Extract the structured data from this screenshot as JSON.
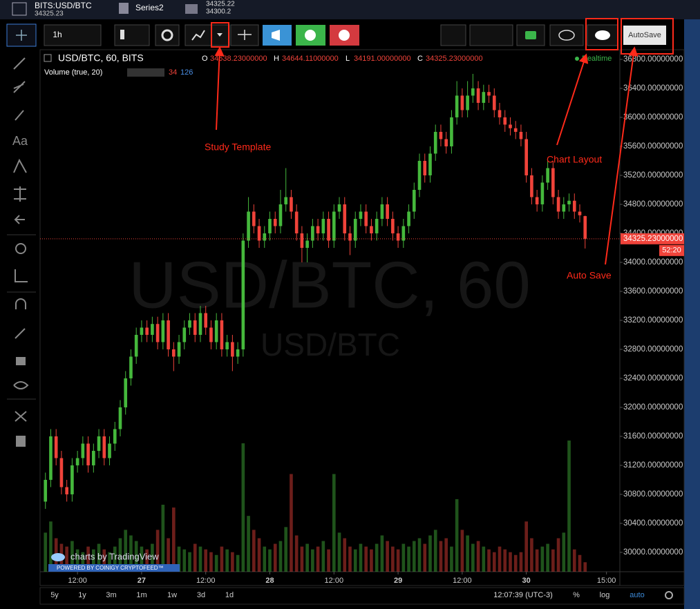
{
  "ui": {
    "symbol": "BITS:USD/BTC",
    "symbol_price": "34325.23",
    "series2": "Series2",
    "series2_price1": "34325.22",
    "series2_price2": "34300.2",
    "interval": "1h",
    "autosave": "AutoSave",
    "text_tool": "Aa",
    "timeframes": [
      "5y",
      "1y",
      "3m",
      "1m",
      "1w",
      "3d",
      "1d"
    ],
    "clock": "12:07:39 (UTC-3)",
    "percent": "%",
    "log": "log",
    "auto": "auto",
    "branding": "charts by TradingView",
    "powered": "POWERED BY COINIGY CRYPTOFEED™",
    "annotations": [
      "Study Template",
      "Chart Layout",
      "Auto Save"
    ]
  },
  "chart_data": {
    "type": "candlestick",
    "title": "USD/BTC, 60, BITS",
    "watermark": [
      "USD/BTC, 60",
      "USD/BTC"
    ],
    "ohlc_legend": [
      {
        "key": "O",
        "text": "34638.23000000"
      },
      {
        "key": "H",
        "text": "34644.11000000"
      },
      {
        "key": "L",
        "text": "34191.00000000"
      },
      {
        "key": "C",
        "text": "34325.23000000"
      }
    ],
    "volume_legend": {
      "name": "Volume (true, 20)",
      "value": 34,
      "ma": 126
    },
    "realtime": "Realtime",
    "last_price": {
      "value": 34325.23,
      "label": "34325.23000000"
    },
    "countdown": "52:20",
    "up_color": "#45b83c",
    "down_color": "#f0433a",
    "grid": false,
    "categories": [
      null,
      null,
      null,
      null,
      null,
      null,
      null,
      null,
      null,
      null,
      null,
      null,
      null,
      null,
      null,
      null,
      null,
      null,
      null,
      null,
      null,
      null,
      null,
      null,
      null,
      null,
      null,
      null,
      null,
      null,
      null,
      null,
      null,
      null,
      null,
      null,
      null,
      null,
      null,
      null,
      null,
      null,
      null,
      null,
      null,
      null,
      null,
      null,
      null,
      null,
      null,
      null,
      null,
      null,
      null,
      null,
      null,
      null,
      null,
      null,
      null,
      null,
      null,
      null,
      null,
      null,
      null,
      null,
      null,
      null,
      null,
      null,
      null,
      null,
      null,
      null,
      null,
      null,
      null,
      null,
      null,
      null,
      null,
      null,
      null,
      null,
      null,
      null,
      null,
      null,
      null,
      null,
      null,
      null,
      null,
      null,
      null,
      null,
      null,
      null,
      null,
      null
    ],
    "xlim": [
      -1,
      107.5
    ],
    "xticks": [
      {
        "value": 6,
        "label": "12:00"
      },
      {
        "value": 18,
        "label": "27"
      },
      {
        "value": 30,
        "label": "12:00"
      },
      {
        "value": 42,
        "label": "28"
      },
      {
        "value": 54,
        "label": "12:00"
      },
      {
        "value": 66,
        "label": "29"
      },
      {
        "value": 78,
        "label": "12:00"
      },
      {
        "value": 90,
        "label": "30"
      },
      {
        "value": 105,
        "label": "15:00"
      }
    ],
    "ylim": [
      29733,
      36933
    ],
    "yticks": [
      {
        "value": 30000,
        "label": "30000.00000000"
      },
      {
        "value": 30400,
        "label": "30400.00000000"
      },
      {
        "value": 30800,
        "label": "30800.00000000"
      },
      {
        "value": 31200,
        "label": "31200.00000000"
      },
      {
        "value": 31600,
        "label": "31600.00000000"
      },
      {
        "value": 32000,
        "label": "32000.00000000"
      },
      {
        "value": 32400,
        "label": "32400.00000000"
      },
      {
        "value": 32800,
        "label": "32800.00000000"
      },
      {
        "value": 33200,
        "label": "33200.00000000"
      },
      {
        "value": 33600,
        "label": "33600.00000000"
      },
      {
        "value": 34000,
        "label": "34000.00000000"
      },
      {
        "value": 34400,
        "label": "34400.00000000"
      },
      {
        "value": 34800,
        "label": "34800.00000000"
      },
      {
        "value": 35200,
        "label": "35200.00000000"
      },
      {
        "value": 35600,
        "label": "35600.00000000"
      },
      {
        "value": 36000,
        "label": "36000.00000000"
      },
      {
        "value": 36400,
        "label": "36400.00000000"
      },
      {
        "value": 36800,
        "label": "36800.00000000"
      }
    ],
    "series": [
      {
        "open": [
          30700,
          31000,
          31600,
          31300,
          30900,
          30800,
          31200,
          31300,
          31500,
          31200,
          31400,
          31600,
          31300,
          31500,
          31700,
          32000,
          32400,
          32700,
          33000,
          33100,
          33000,
          33150,
          32900,
          33200,
          32800,
          32700,
          32900,
          33100,
          33200,
          33000,
          33300,
          33100,
          32900,
          33200,
          32800,
          32900,
          32700,
          32800,
          34300,
          34700,
          34500,
          34300,
          34400,
          34600,
          34500,
          34800,
          34900,
          34700,
          34400,
          34200,
          34300,
          34500,
          34400,
          34600,
          34300,
          34700,
          34800,
          34400,
          34300,
          34600,
          34700,
          34500,
          34400,
          34600,
          34800,
          34600,
          34400,
          34300,
          34500,
          34700,
          35000,
          35400,
          35200,
          35500,
          35800,
          35700,
          35600,
          36000,
          36300,
          36100,
          36300,
          36400,
          36200,
          36350,
          36300,
          36100,
          36000,
          35900,
          35850,
          35800,
          35700,
          35200,
          34900,
          34800,
          35100,
          35300,
          34900,
          34700,
          34800,
          34850,
          34700,
          34638.23
        ],
        "high": [
          31100,
          31700,
          31700,
          31400,
          31000,
          31300,
          31400,
          31600,
          31600,
          31500,
          31700,
          31700,
          31600,
          31800,
          32100,
          32500,
          32800,
          33100,
          33200,
          33200,
          33250,
          33250,
          33300,
          33300,
          32900,
          33000,
          33200,
          33300,
          33300,
          33400,
          33400,
          33200,
          33300,
          33300,
          33000,
          33000,
          32900,
          34400,
          34900,
          34800,
          34600,
          34500,
          34700,
          34700,
          35000,
          35300,
          35000,
          34800,
          34500,
          34400,
          34600,
          34600,
          34700,
          34700,
          34800,
          34900,
          34900,
          34500,
          34700,
          34800,
          34800,
          34600,
          34700,
          34900,
          34900,
          34700,
          34500,
          34600,
          34800,
          35100,
          35500,
          35500,
          35600,
          35900,
          35900,
          35800,
          36100,
          36500,
          36400,
          36500,
          36600,
          36500,
          36450,
          36450,
          36400,
          36200,
          36100,
          36000,
          35950,
          35900,
          35800,
          35300,
          35000,
          35200,
          35400,
          35400,
          35000,
          34900,
          34950,
          34950,
          34800,
          34644.11
        ],
        "low": [
          30600,
          30900,
          31200,
          30800,
          30700,
          30700,
          31100,
          31200,
          31100,
          31100,
          31300,
          31200,
          31200,
          31400,
          31600,
          31900,
          32300,
          32600,
          32900,
          32900,
          32900,
          32800,
          32800,
          32700,
          32500,
          32600,
          32800,
          33000,
          32900,
          32900,
          33000,
          32800,
          32800,
          32700,
          32700,
          32500,
          32600,
          32700,
          34200,
          34400,
          34200,
          34200,
          34300,
          34400,
          34400,
          34700,
          34600,
          34300,
          34000,
          34000,
          34200,
          34300,
          34300,
          34200,
          34200,
          34600,
          34300,
          34100,
          34200,
          34500,
          34400,
          34300,
          34300,
          34500,
          34500,
          34300,
          34200,
          34200,
          34400,
          34600,
          34900,
          35100,
          35100,
          35400,
          35600,
          35500,
          35500,
          35900,
          36000,
          36000,
          36200,
          36100,
          36100,
          36200,
          36000,
          35900,
          35800,
          35750,
          35700,
          35600,
          35100,
          34800,
          34700,
          34700,
          35000,
          34800,
          34600,
          34600,
          34700,
          34600,
          34550,
          34191
        ],
        "close": [
          31000,
          31600,
          31300,
          30900,
          30800,
          31200,
          31300,
          31500,
          31200,
          31400,
          31600,
          31300,
          31500,
          31700,
          32000,
          32400,
          32700,
          33000,
          33100,
          33000,
          33150,
          32900,
          33200,
          32800,
          32700,
          32900,
          33100,
          33200,
          33000,
          33300,
          33100,
          32900,
          33200,
          32800,
          32900,
          32700,
          32800,
          34300,
          34700,
          34500,
          34300,
          34400,
          34600,
          34500,
          34800,
          34900,
          34700,
          34400,
          34200,
          34300,
          34500,
          34400,
          34600,
          34300,
          34700,
          34800,
          34400,
          34300,
          34600,
          34700,
          34500,
          34400,
          34600,
          34800,
          34600,
          34400,
          34300,
          34500,
          34700,
          35000,
          35400,
          35200,
          35500,
          35800,
          35700,
          35600,
          36000,
          36300,
          36100,
          36300,
          36400,
          36200,
          36350,
          36300,
          36100,
          36000,
          35900,
          35850,
          35800,
          35700,
          35200,
          34900,
          34800,
          35100,
          35300,
          34900,
          34700,
          34800,
          34850,
          34700,
          34650,
          34325.23
        ],
        "volume": [
          140,
          180,
          120,
          100,
          90,
          110,
          80,
          70,
          90,
          80,
          100,
          80,
          70,
          90,
          120,
          150,
          130,
          110,
          90,
          80,
          100,
          150,
          240,
          120,
          230,
          90,
          80,
          70,
          100,
          90,
          80,
          70,
          60,
          90,
          80,
          70,
          60,
          460,
          200,
          150,
          120,
          90,
          80,
          100,
          110,
          160,
          350,
          130,
          90,
          100,
          80,
          90,
          110,
          80,
          350,
          140,
          120,
          90,
          80,
          100,
          90,
          80,
          100,
          130,
          110,
          90,
          80,
          100,
          90,
          110,
          120,
          100,
          130,
          150,
          110,
          120,
          90,
          260,
          150,
          130,
          100,
          110,
          90,
          80,
          70,
          90,
          80,
          70,
          60,
          70,
          180,
          120,
          80,
          90,
          100,
          80,
          120,
          140,
          470,
          80,
          60,
          34
        ]
      }
    ]
  }
}
